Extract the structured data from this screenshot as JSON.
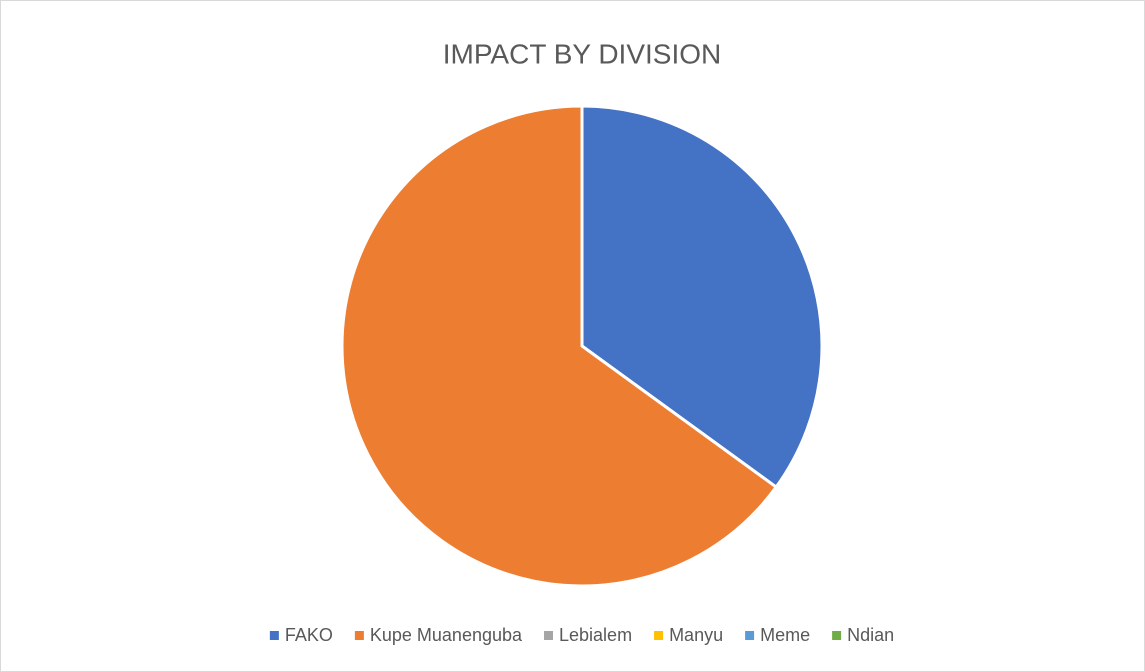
{
  "chart_data": {
    "type": "pie",
    "title": "IMPACT BY DIVISION",
    "categories": [
      "FAKO",
      "Kupe Muanenguba",
      "Lebialem",
      "Manyu",
      "Meme",
      "Ndian"
    ],
    "values": [
      35,
      65,
      0,
      0,
      0,
      0
    ],
    "colors": [
      "#4472c4",
      "#ed7d31",
      "#a5a5a5",
      "#ffc000",
      "#5b9bd5",
      "#70ad47"
    ],
    "legend": "bottom"
  }
}
